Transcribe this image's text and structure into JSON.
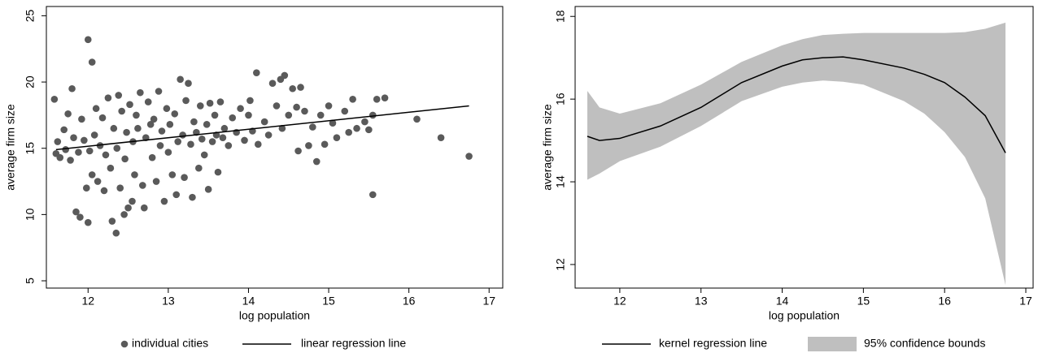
{
  "chart_data": [
    {
      "type": "scatter",
      "xlabel": "log population",
      "ylabel": "average firm size",
      "xlim": [
        11.48,
        17.17
      ],
      "ylim": [
        4.45,
        25.7
      ],
      "xticks": [
        12,
        13,
        14,
        15,
        16,
        17
      ],
      "yticks": [
        5,
        10,
        15,
        20,
        25
      ],
      "legend": "bottom",
      "series": [
        {
          "name": "individual cities",
          "type": "scatter",
          "color": "#5a5a5a",
          "x": [
            11.58,
            11.6,
            11.62,
            11.65,
            11.7,
            11.72,
            11.75,
            11.78,
            11.8,
            11.82,
            11.85,
            11.88,
            11.9,
            11.92,
            11.95,
            11.98,
            12.0,
            12.0,
            12.02,
            12.05,
            12.05,
            12.08,
            12.1,
            12.12,
            12.15,
            12.18,
            12.2,
            12.22,
            12.25,
            12.28,
            12.3,
            12.32,
            12.35,
            12.36,
            12.38,
            12.4,
            12.42,
            12.45,
            12.46,
            12.48,
            12.5,
            12.52,
            12.55,
            12.56,
            12.58,
            12.6,
            12.62,
            12.65,
            12.68,
            12.7,
            12.72,
            12.75,
            12.78,
            12.8,
            12.82,
            12.85,
            12.88,
            12.9,
            12.92,
            12.95,
            12.98,
            13.0,
            13.02,
            13.05,
            13.08,
            13.1,
            13.12,
            13.15,
            13.18,
            13.2,
            13.22,
            13.25,
            13.28,
            13.3,
            13.32,
            13.35,
            13.38,
            13.4,
            13.42,
            13.45,
            13.48,
            13.5,
            13.52,
            13.55,
            13.58,
            13.6,
            13.62,
            13.65,
            13.68,
            13.7,
            13.75,
            13.8,
            13.85,
            13.9,
            13.95,
            14.0,
            14.02,
            14.05,
            14.1,
            14.12,
            14.2,
            14.25,
            14.3,
            14.35,
            14.4,
            14.42,
            14.45,
            14.5,
            14.55,
            14.6,
            14.62,
            14.65,
            14.7,
            14.75,
            14.8,
            14.85,
            14.9,
            14.95,
            15.0,
            15.05,
            15.1,
            15.2,
            15.25,
            15.3,
            15.35,
            15.45,
            15.5,
            15.55,
            15.55,
            15.6,
            15.7,
            16.1,
            16.4,
            16.75
          ],
          "values": [
            18.7,
            14.6,
            15.5,
            14.3,
            16.4,
            14.9,
            17.6,
            14.1,
            19.5,
            15.8,
            10.2,
            14.7,
            9.8,
            17.2,
            15.6,
            12.0,
            23.2,
            9.4,
            14.8,
            21.5,
            13.0,
            16.0,
            18.0,
            12.5,
            15.2,
            17.3,
            11.8,
            14.5,
            18.8,
            13.5,
            9.5,
            16.5,
            8.6,
            15.0,
            19.0,
            12.0,
            17.8,
            10.0,
            14.2,
            16.2,
            10.5,
            18.3,
            11.0,
            15.5,
            13.0,
            17.5,
            16.5,
            19.2,
            12.2,
            10.5,
            15.8,
            18.5,
            16.8,
            14.3,
            17.2,
            12.5,
            19.3,
            15.2,
            16.3,
            11.0,
            18.0,
            14.7,
            16.8,
            13.0,
            17.6,
            11.5,
            15.5,
            20.2,
            16.0,
            12.8,
            18.6,
            19.9,
            15.3,
            11.3,
            17.0,
            16.2,
            13.5,
            18.2,
            15.7,
            14.5,
            16.8,
            11.9,
            18.4,
            15.5,
            17.5,
            16.0,
            13.2,
            18.5,
            15.8,
            16.5,
            15.2,
            17.3,
            16.2,
            18.0,
            15.6,
            17.5,
            18.6,
            16.3,
            20.7,
            15.3,
            17.0,
            16.0,
            19.9,
            18.2,
            20.2,
            16.5,
            20.5,
            17.5,
            19.5,
            18.1,
            14.8,
            19.6,
            17.8,
            15.2,
            16.6,
            14.0,
            17.5,
            15.3,
            18.2,
            16.9,
            15.8,
            17.8,
            16.2,
            18.7,
            16.5,
            17.0,
            16.4,
            11.5,
            17.5,
            18.7,
            18.8,
            17.2,
            15.8,
            14.4
          ]
        },
        {
          "name": "linear regression line",
          "type": "line",
          "color": "#000000",
          "x": [
            11.6,
            16.75
          ],
          "values": [
            14.9,
            18.2
          ]
        }
      ]
    },
    {
      "type": "line",
      "xlabel": "log population",
      "ylabel": "average firm size",
      "xlim": [
        11.45,
        17.09
      ],
      "ylim": [
        11.43,
        18.24
      ],
      "xticks": [
        12,
        13,
        14,
        15,
        16,
        17
      ],
      "yticks": [
        12,
        14,
        16,
        18
      ],
      "legend": "bottom",
      "series": [
        {
          "name": "kernel regression line",
          "type": "line",
          "color": "#000000",
          "x": [
            11.6,
            11.75,
            12,
            12.5,
            13,
            13.5,
            14,
            14.25,
            14.5,
            14.75,
            15,
            15.5,
            15.75,
            16,
            16.25,
            16.5,
            16.75
          ],
          "values": [
            15.1,
            15.0,
            15.05,
            15.35,
            15.8,
            16.4,
            16.8,
            16.95,
            17.0,
            17.02,
            16.95,
            16.75,
            16.6,
            16.4,
            16.05,
            15.6,
            14.7
          ]
        },
        {
          "name": "95% confidence bounds",
          "type": "area",
          "color": "#bfbfbf",
          "x": [
            11.6,
            11.75,
            12,
            12.5,
            13,
            13.5,
            14,
            14.25,
            14.5,
            14.75,
            15,
            15.5,
            15.75,
            16,
            16.25,
            16.5,
            16.75
          ],
          "lower": [
            14.05,
            14.2,
            14.5,
            14.85,
            15.35,
            15.95,
            16.3,
            16.4,
            16.45,
            16.42,
            16.35,
            15.95,
            15.65,
            15.2,
            14.6,
            13.6,
            11.5
          ],
          "upper": [
            16.2,
            15.8,
            15.65,
            15.9,
            16.35,
            16.9,
            17.3,
            17.45,
            17.55,
            17.58,
            17.6,
            17.6,
            17.6,
            17.6,
            17.62,
            17.7,
            17.85
          ]
        }
      ]
    }
  ]
}
